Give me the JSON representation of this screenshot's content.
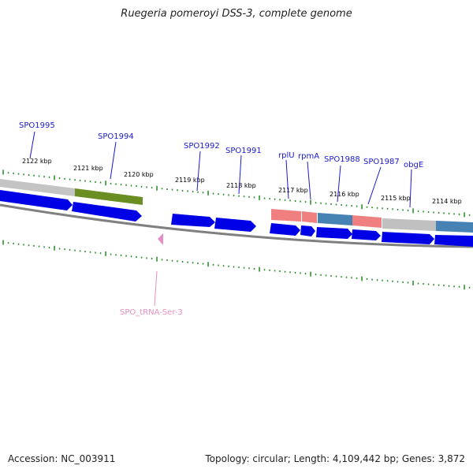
{
  "title": "Ruegeria pomeroyi DSS-3, complete genome",
  "footer": {
    "accession": "Accession: NC_003911",
    "summary": "Topology: circular; Length: 4,109,442 bp; Genes: 3,872"
  },
  "colors": {
    "backbone": "#808080",
    "cds_arrow": "#0000e6",
    "ticks": "#228b22",
    "gene_label": "#1a1acd",
    "trna_label": "#e58fc0",
    "trna_marker": "#e68ac8",
    "band_gray": "#c0c0c0",
    "band_green": "#6b8e23",
    "band_pink": "#f08080",
    "band_steelblue": "#4682b4"
  },
  "kbp_labels": [
    "2122 kbp",
    "2121 kbp",
    "2120 kbp",
    "2119 kbp",
    "2118 kbp",
    "2117 kbp",
    "2116 kbp",
    "2115 kbp",
    "2114 kbp"
  ],
  "gene_labels": [
    "SPO1995",
    "SPO1994",
    "SPO1992",
    "SPO1991",
    "rplU",
    "rpmA",
    "SPO1988",
    "SPO1987",
    "obgE"
  ],
  "trna_label": "SPO_tRNA-Ser-3"
}
